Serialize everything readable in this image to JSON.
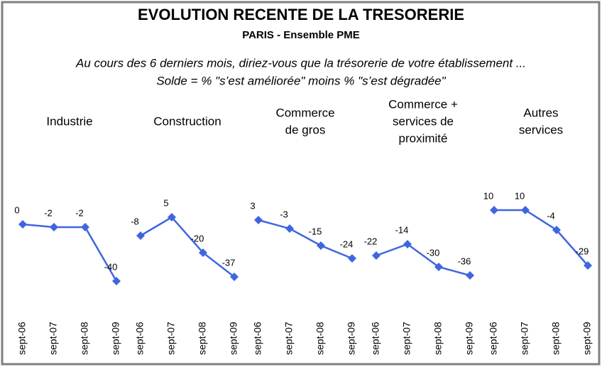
{
  "title": "EVOLUTION RECENTE DE LA TRESORERIE",
  "subtitle": "PARIS - Ensemble PME",
  "note": [
    "Au cours des 6 derniers mois, diriez-vous que la trésorerie de votre établissement ...",
    "Solde = %  \"s’est améliorée\"  moins %  \"s’est dégradée\""
  ],
  "chart_data": [
    {
      "type": "line",
      "title": [
        "Industrie"
      ],
      "categories": [
        "sept-06",
        "sept-07",
        "sept-08",
        "sept-09"
      ],
      "values": [
        0,
        -2,
        -2,
        -40
      ],
      "color": "#3f66e0",
      "ylim": [
        -45,
        15
      ]
    },
    {
      "type": "line",
      "title": [
        "Construction"
      ],
      "categories": [
        "sept-06",
        "sept-07",
        "sept-08",
        "sept-09"
      ],
      "values": [
        -8,
        5,
        -20,
        -37
      ],
      "color": "#3f66e0",
      "ylim": [
        -45,
        15
      ]
    },
    {
      "type": "line",
      "title": [
        "Commerce",
        "de gros"
      ],
      "categories": [
        "sept-06",
        "sept-07",
        "sept-08",
        "sept-09"
      ],
      "values": [
        3,
        -3,
        -15,
        -24
      ],
      "color": "#3f66e0",
      "ylim": [
        -45,
        15
      ]
    },
    {
      "type": "line",
      "title": [
        "Commerce +",
        "services de",
        "proximité"
      ],
      "categories": [
        "sept-06",
        "sept-07",
        "sept-08",
        "sept-09"
      ],
      "values": [
        -22,
        -14,
        -30,
        -36
      ],
      "color": "#3f66e0",
      "ylim": [
        -45,
        15
      ]
    },
    {
      "type": "line",
      "title": [
        "Autres",
        "services"
      ],
      "categories": [
        "sept-06",
        "sept-07",
        "sept-08",
        "sept-09"
      ],
      "values": [
        10,
        10,
        -4,
        -29
      ],
      "color": "#3f66e0",
      "ylim": [
        -45,
        15
      ]
    }
  ]
}
